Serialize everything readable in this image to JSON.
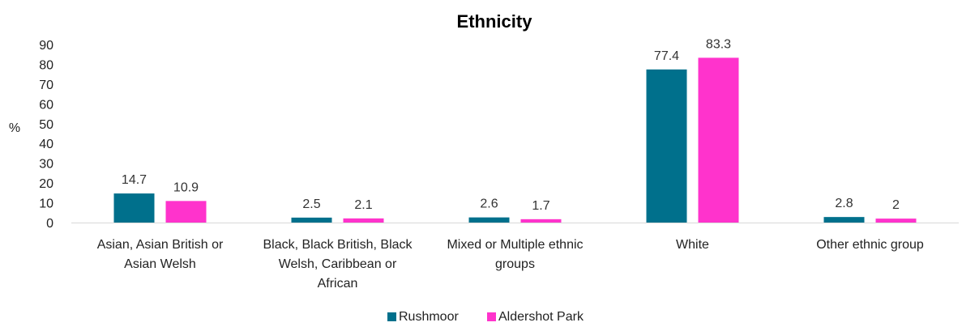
{
  "chart_data": {
    "type": "bar",
    "title": "Ethnicity",
    "ylabel": "%",
    "xlabel": "",
    "ylim": [
      0,
      90
    ],
    "yticks": [
      0,
      10,
      20,
      30,
      40,
      50,
      60,
      70,
      80,
      90
    ],
    "grid": false,
    "legend_position": "bottom",
    "categories": [
      [
        "Asian, Asian British or",
        "Asian Welsh"
      ],
      [
        "Black, Black British, Black",
        "Welsh, Caribbean or",
        "African"
      ],
      [
        "Mixed or Multiple ethnic",
        "groups"
      ],
      [
        "White"
      ],
      [
        "Other ethnic group"
      ]
    ],
    "series": [
      {
        "name": "Rushmoor",
        "color": "#00708c",
        "values": [
          14.7,
          2.5,
          2.6,
          77.4,
          2.8
        ]
      },
      {
        "name": "Aldershot Park",
        "color": "#ff33cc",
        "values": [
          10.9,
          2.1,
          1.7,
          83.3,
          2
        ]
      }
    ]
  }
}
